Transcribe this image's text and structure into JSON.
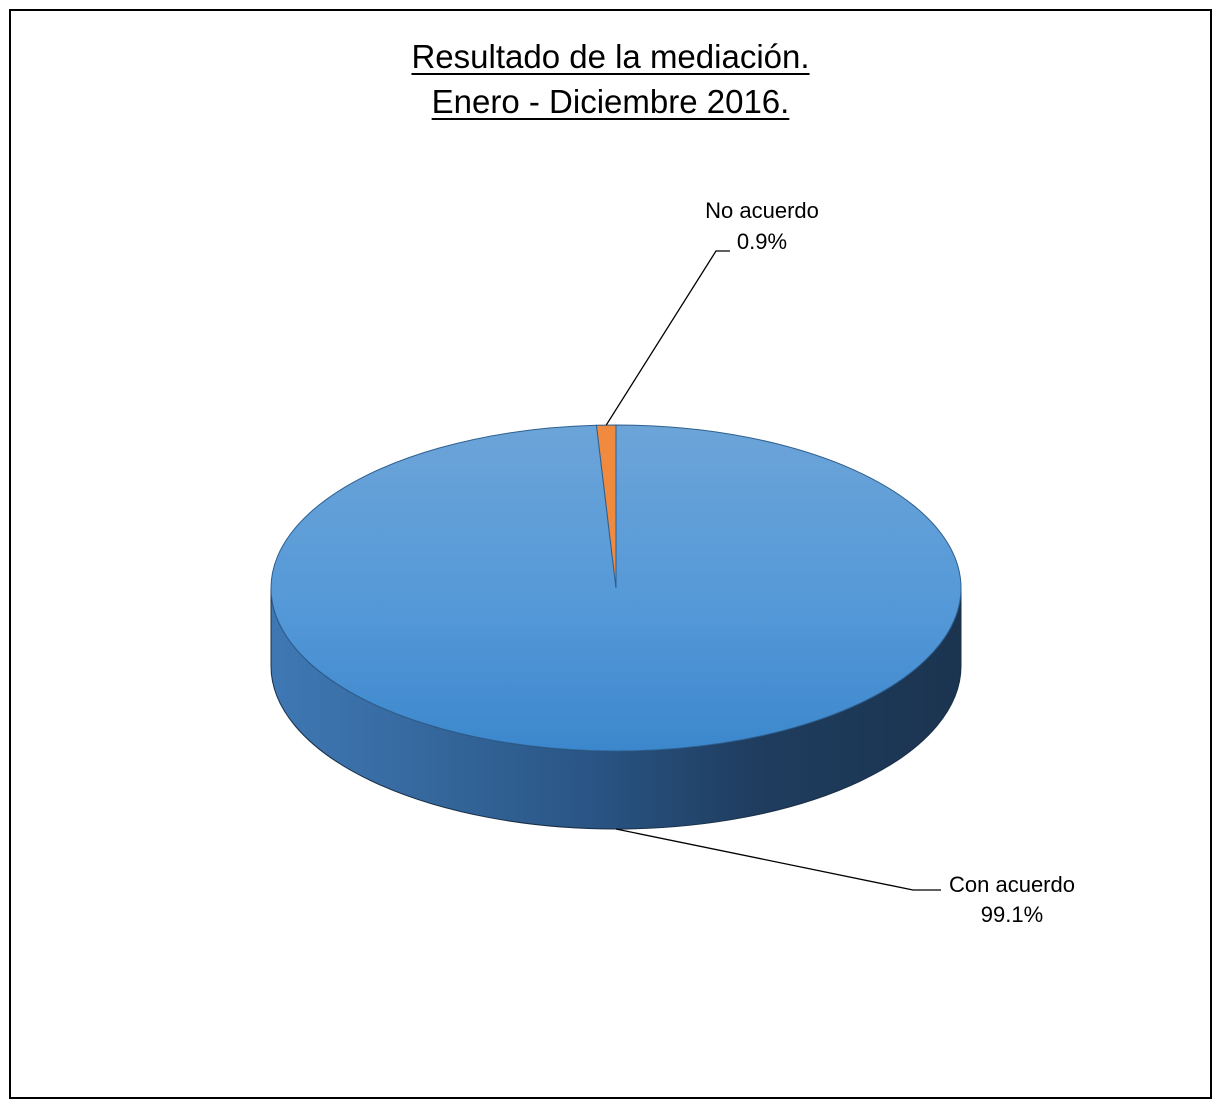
{
  "chart_data": {
    "type": "pie",
    "title": "Resultado de la mediación.",
    "subtitle": "Enero - Diciembre 2016.",
    "series": [
      {
        "categories": [
          "Con acuerdo",
          "No acuerdo"
        ],
        "values": [
          99.1,
          0.9
        ],
        "value_labels": [
          "99.1%",
          "0.9%"
        ]
      }
    ],
    "colors": [
      "#4f93d5",
      "#ef8a3f"
    ],
    "legend": "none",
    "style": "3d"
  }
}
